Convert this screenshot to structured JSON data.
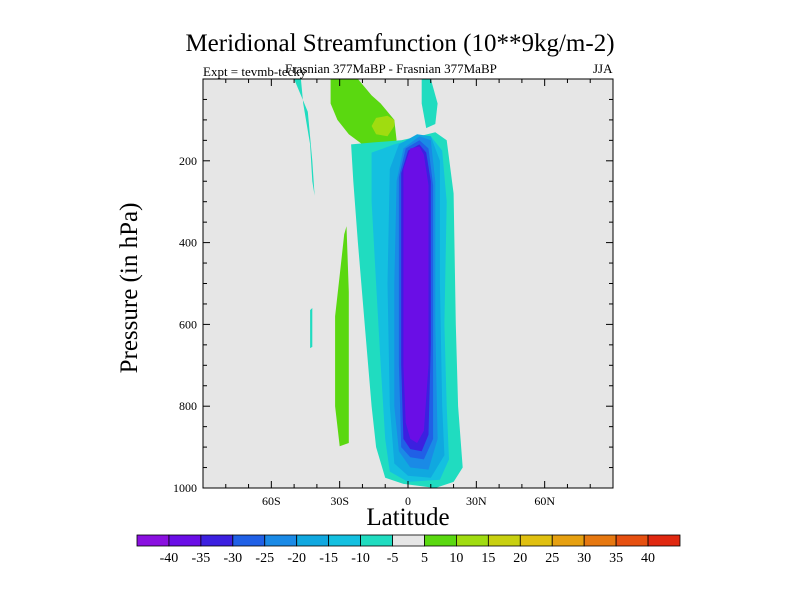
{
  "chart_data": {
    "type": "contour",
    "title": "Meridional Streamfunction (10**9kg/m-2)",
    "subtitle": "Frasnian 377MaBP - Frasnian 377MaBP",
    "expt": "Expt = tevmb-tecky",
    "season": "JJA",
    "xlabel": "Latitude",
    "ylabel": "Pressure (in hPa)",
    "xlim": [
      -90,
      90
    ],
    "ylim": [
      1000,
      0
    ],
    "x_ticks": [
      {
        "value": -60,
        "label": "60S"
      },
      {
        "value": -30,
        "label": "30S"
      },
      {
        "value": 0,
        "label": "0"
      },
      {
        "value": 30,
        "label": "30N"
      },
      {
        "value": 60,
        "label": "60N"
      }
    ],
    "y_ticks": [
      {
        "value": 200,
        "label": "200"
      },
      {
        "value": 400,
        "label": "400"
      },
      {
        "value": 600,
        "label": "600"
      },
      {
        "value": 800,
        "label": "800"
      },
      {
        "value": 1000,
        "label": "1000"
      }
    ],
    "background_color": "#e6e6e6",
    "colorbar": {
      "labels": [
        "-40",
        "-35",
        "-30",
        "-25",
        "-20",
        "-15",
        "-10",
        "-5",
        "5",
        "10",
        "15",
        "20",
        "25",
        "30",
        "35",
        "40"
      ],
      "colors": [
        "#8a10e0",
        "#6a0ee6",
        "#3c20e0",
        "#2060e6",
        "#1a8ae6",
        "#10a8e0",
        "#14c0e0",
        "#20dcc0",
        "#e6e6e6",
        "#5ad810",
        "#a0dc10",
        "#c8d010",
        "#e0c010",
        "#e6a010",
        "#e67810",
        "#e65010",
        "#e02810"
      ]
    },
    "regions": [
      {
        "name": "cyan-tongue-left",
        "value": -7,
        "points": [
          [
            -50,
            0
          ],
          [
            -47,
            0
          ],
          [
            -46,
            60
          ],
          [
            -43,
            160
          ],
          [
            -42,
            250
          ],
          [
            -41,
            285
          ],
          [
            -42,
            200
          ],
          [
            -44,
            80
          ]
        ]
      },
      {
        "name": "green-top",
        "value": 7,
        "points": [
          [
            -34,
            0
          ],
          [
            -22,
            0
          ],
          [
            -16,
            40
          ],
          [
            -12,
            60
          ],
          [
            -6,
            100
          ],
          [
            -5,
            150
          ],
          [
            -10,
            180
          ],
          [
            -14,
            175
          ],
          [
            -20,
            160
          ],
          [
            -26,
            135
          ],
          [
            -31,
            100
          ],
          [
            -34,
            60
          ]
        ]
      },
      {
        "name": "light-green-top",
        "value": 12,
        "points": [
          [
            -14,
            95
          ],
          [
            -9,
            90
          ],
          [
            -6,
            100
          ],
          [
            -6,
            115
          ],
          [
            -9,
            140
          ],
          [
            -14,
            135
          ],
          [
            -16,
            115
          ]
        ]
      },
      {
        "name": "cyan-topright",
        "value": -7,
        "points": [
          [
            6,
            0
          ],
          [
            10,
            0
          ],
          [
            13,
            60
          ],
          [
            12,
            110
          ],
          [
            8,
            120
          ],
          [
            6,
            60
          ]
        ]
      },
      {
        "name": "green-left-vertical",
        "value": 7,
        "points": [
          [
            -32,
            580
          ],
          [
            -30,
            480
          ],
          [
            -28,
            380
          ],
          [
            -27,
            360
          ],
          [
            -26,
            520
          ],
          [
            -26,
            740
          ],
          [
            -26,
            890
          ],
          [
            -30,
            898
          ],
          [
            -32,
            800
          ],
          [
            -32,
            700
          ]
        ]
      },
      {
        "name": "cyan-dot",
        "value": -7,
        "points": [
          [
            -43,
            565
          ],
          [
            -42,
            560
          ],
          [
            -42,
            655
          ],
          [
            -43,
            658
          ]
        ]
      },
      {
        "name": "outer-cyan",
        "value": -7,
        "points": [
          [
            -25,
            160
          ],
          [
            -15,
            155
          ],
          [
            -3,
            150
          ],
          [
            5,
            140
          ],
          [
            12,
            130
          ],
          [
            17,
            150
          ],
          [
            20,
            280
          ],
          [
            21,
            600
          ],
          [
            22,
            800
          ],
          [
            24,
            950
          ],
          [
            20,
            985
          ],
          [
            12,
            1000
          ],
          [
            -2,
            990
          ],
          [
            -10,
            975
          ],
          [
            -14,
            900
          ],
          [
            -16,
            800
          ],
          [
            -19,
            600
          ],
          [
            -22,
            400
          ],
          [
            -24,
            250
          ]
        ]
      },
      {
        "name": "teal",
        "value": -12,
        "points": [
          [
            -16,
            180
          ],
          [
            -6,
            160
          ],
          [
            4,
            145
          ],
          [
            10,
            140
          ],
          [
            15,
            175
          ],
          [
            17,
            300
          ],
          [
            16,
            600
          ],
          [
            17,
            800
          ],
          [
            18,
            930
          ],
          [
            14,
            980
          ],
          [
            0,
            985
          ],
          [
            -8,
            960
          ],
          [
            -10,
            880
          ],
          [
            -12,
            700
          ],
          [
            -14,
            500
          ],
          [
            -16,
            300
          ]
        ]
      },
      {
        "name": "lightblue",
        "value": -17,
        "points": [
          [
            -8,
            220
          ],
          [
            -4,
            160
          ],
          [
            4,
            135
          ],
          [
            10,
            140
          ],
          [
            14,
            200
          ],
          [
            14,
            500
          ],
          [
            15,
            800
          ],
          [
            16,
            920
          ],
          [
            10,
            975
          ],
          [
            0,
            970
          ],
          [
            -6,
            940
          ],
          [
            -8,
            800
          ],
          [
            -9,
            500
          ]
        ]
      },
      {
        "name": "blue-1",
        "value": -22,
        "points": [
          [
            -5,
            250
          ],
          [
            -2,
            170
          ],
          [
            5,
            140
          ],
          [
            10,
            150
          ],
          [
            12,
            250
          ],
          [
            12,
            600
          ],
          [
            13,
            880
          ],
          [
            9,
            955
          ],
          [
            1,
            950
          ],
          [
            -4,
            910
          ],
          [
            -6,
            800
          ],
          [
            -6,
            500
          ]
        ]
      },
      {
        "name": "blue-2",
        "value": -27,
        "points": [
          [
            -4,
            240
          ],
          [
            -1,
            170
          ],
          [
            5,
            150
          ],
          [
            9,
            170
          ],
          [
            11,
            260
          ],
          [
            11,
            600
          ],
          [
            11,
            880
          ],
          [
            7,
            930
          ],
          [
            1,
            925
          ],
          [
            -3,
            900
          ],
          [
            -4,
            700
          ]
        ]
      },
      {
        "name": "blue-3",
        "value": -32,
        "points": [
          [
            -3,
            230
          ],
          [
            0,
            175
          ],
          [
            5,
            160
          ],
          [
            8,
            180
          ],
          [
            10,
            250
          ],
          [
            10,
            650
          ],
          [
            9,
            870
          ],
          [
            6,
            910
          ],
          [
            1,
            905
          ],
          [
            -2,
            880
          ],
          [
            -3,
            700
          ]
        ]
      },
      {
        "name": "core",
        "value": -37,
        "points": [
          [
            -2,
            220
          ],
          [
            1,
            170
          ],
          [
            5,
            165
          ],
          [
            7,
            185
          ],
          [
            9,
            260
          ],
          [
            9,
            700
          ],
          [
            7,
            860
          ],
          [
            4,
            890
          ],
          [
            1,
            880
          ],
          [
            -1,
            840
          ],
          [
            -2,
            700
          ]
        ]
      }
    ]
  }
}
